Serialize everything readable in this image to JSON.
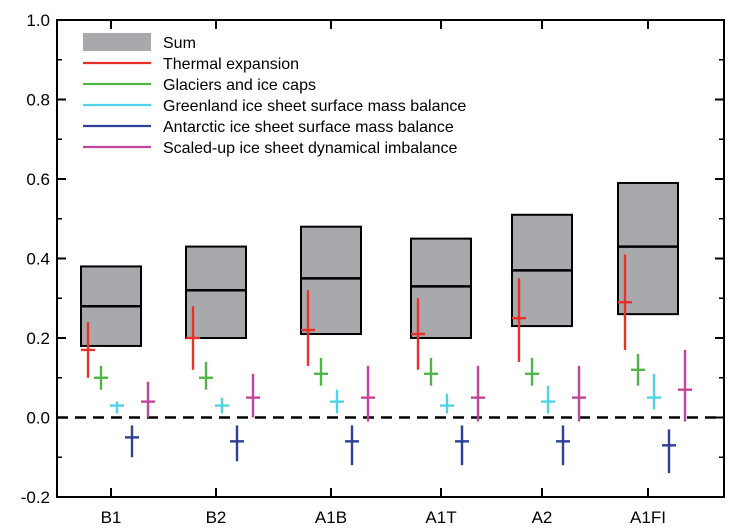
{
  "chart_data": {
    "type": "box",
    "title": "",
    "xlabel": "",
    "ylabel": "",
    "ylim": [
      -0.2,
      1.0
    ],
    "yticks": [
      -0.2,
      0.0,
      0.2,
      0.4,
      0.6,
      0.8,
      1.0
    ],
    "ytick_labels": [
      "-0.2",
      "0.0",
      "0.2",
      "0.4",
      "0.6",
      "0.8",
      "1.0"
    ],
    "categories": [
      "B1",
      "B2",
      "A1B",
      "A1T",
      "A2",
      "A1FI"
    ],
    "zero_line": "dashed",
    "legend": {
      "placement": "top-left",
      "entries": [
        {
          "label": "Sum",
          "kind": "box",
          "color": "#a9a9ad"
        },
        {
          "label": "Thermal expansion",
          "kind": "line",
          "color": "#e8302a"
        },
        {
          "label": "Glaciers and ice caps",
          "kind": "line",
          "color": "#4fb548"
        },
        {
          "label": "Greenland ice sheet surface mass balance",
          "kind": "line",
          "color": "#4fd3e6"
        },
        {
          "label": "Antarctic ice sheet surface mass balance",
          "kind": "line",
          "color": "#2e3f96"
        },
        {
          "label": "Scaled-up ice sheet dynamical imbalance",
          "kind": "line",
          "color": "#c2449b"
        }
      ]
    },
    "sum": [
      {
        "category": "B1",
        "low": 0.18,
        "mid": 0.28,
        "high": 0.38
      },
      {
        "category": "B2",
        "low": 0.2,
        "mid": 0.32,
        "high": 0.43
      },
      {
        "category": "A1B",
        "low": 0.21,
        "mid": 0.35,
        "high": 0.48
      },
      {
        "category": "A1T",
        "low": 0.2,
        "mid": 0.33,
        "high": 0.45
      },
      {
        "category": "A2",
        "low": 0.23,
        "mid": 0.37,
        "high": 0.51
      },
      {
        "category": "A1FI",
        "low": 0.26,
        "mid": 0.43,
        "high": 0.59
      }
    ],
    "series": [
      {
        "name": "Thermal expansion",
        "color": "#e8302a",
        "offset": 0,
        "values": [
          {
            "low": 0.1,
            "mid": 0.17,
            "high": 0.24
          },
          {
            "low": 0.12,
            "mid": 0.2,
            "high": 0.28
          },
          {
            "low": 0.13,
            "mid": 0.22,
            "high": 0.32
          },
          {
            "low": 0.12,
            "mid": 0.21,
            "high": 0.3
          },
          {
            "low": 0.14,
            "mid": 0.25,
            "high": 0.35
          },
          {
            "low": 0.17,
            "mid": 0.29,
            "high": 0.41
          }
        ]
      },
      {
        "name": "Glaciers and ice caps",
        "color": "#4fb548",
        "offset": 1,
        "values": [
          {
            "low": 0.07,
            "mid": 0.1,
            "high": 0.13
          },
          {
            "low": 0.07,
            "mid": 0.1,
            "high": 0.14
          },
          {
            "low": 0.08,
            "mid": 0.11,
            "high": 0.15
          },
          {
            "low": 0.08,
            "mid": 0.11,
            "high": 0.15
          },
          {
            "low": 0.08,
            "mid": 0.11,
            "high": 0.15
          },
          {
            "low": 0.08,
            "mid": 0.12,
            "high": 0.16
          }
        ]
      },
      {
        "name": "Greenland ice sheet surface mass balance",
        "color": "#4fd3e6",
        "offset": 2,
        "values": [
          {
            "low": 0.01,
            "mid": 0.03,
            "high": 0.04
          },
          {
            "low": 0.01,
            "mid": 0.03,
            "high": 0.05
          },
          {
            "low": 0.01,
            "mid": 0.04,
            "high": 0.07
          },
          {
            "low": 0.01,
            "mid": 0.03,
            "high": 0.06
          },
          {
            "low": 0.01,
            "mid": 0.04,
            "high": 0.08
          },
          {
            "low": 0.02,
            "mid": 0.05,
            "high": 0.11
          }
        ]
      },
      {
        "name": "Antarctic ice sheet surface mass balance",
        "color": "#2e3f96",
        "offset": 3,
        "values": [
          {
            "low": -0.1,
            "mid": -0.05,
            "high": -0.02
          },
          {
            "low": -0.11,
            "mid": -0.06,
            "high": -0.02
          },
          {
            "low": -0.12,
            "mid": -0.06,
            "high": -0.02
          },
          {
            "low": -0.12,
            "mid": -0.06,
            "high": -0.02
          },
          {
            "low": -0.12,
            "mid": -0.06,
            "high": -0.02
          },
          {
            "low": -0.14,
            "mid": -0.07,
            "high": -0.03
          }
        ]
      },
      {
        "name": "Scaled-up ice sheet dynamical imbalance",
        "color": "#c2449b",
        "offset": 4,
        "values": [
          {
            "low": 0.0,
            "mid": 0.04,
            "high": 0.09
          },
          {
            "low": 0.0,
            "mid": 0.05,
            "high": 0.11
          },
          {
            "low": -0.01,
            "mid": 0.05,
            "high": 0.13
          },
          {
            "low": -0.01,
            "mid": 0.05,
            "high": 0.13
          },
          {
            "low": -0.01,
            "mid": 0.05,
            "high": 0.13
          },
          {
            "low": -0.01,
            "mid": 0.07,
            "high": 0.17
          }
        ]
      }
    ]
  }
}
